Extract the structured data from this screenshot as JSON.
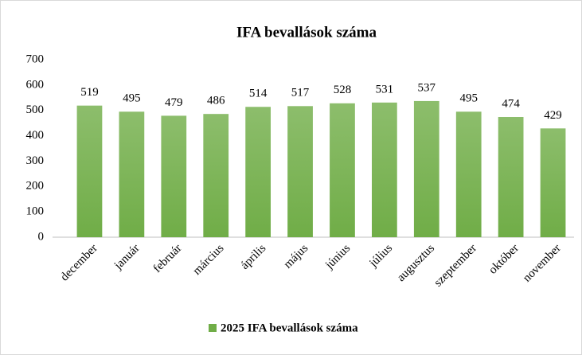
{
  "chart_data": {
    "type": "bar",
    "title": "IFA bevallások száma",
    "categories": [
      "december",
      "január",
      "február",
      "március",
      "április",
      "május",
      "június",
      "július",
      "augusztus",
      "szeptember",
      "október",
      "november"
    ],
    "series": [
      {
        "name": "2025 IFA bevallások száma",
        "color": "#70ad47",
        "values": [
          519,
          495,
          479,
          486,
          514,
          517,
          528,
          531,
          537,
          495,
          474,
          429
        ]
      }
    ],
    "ylim": [
      0,
      700
    ],
    "yticks": [
      0,
      100,
      200,
      300,
      400,
      500,
      600,
      700
    ],
    "grid": false,
    "legend": "bottom"
  }
}
